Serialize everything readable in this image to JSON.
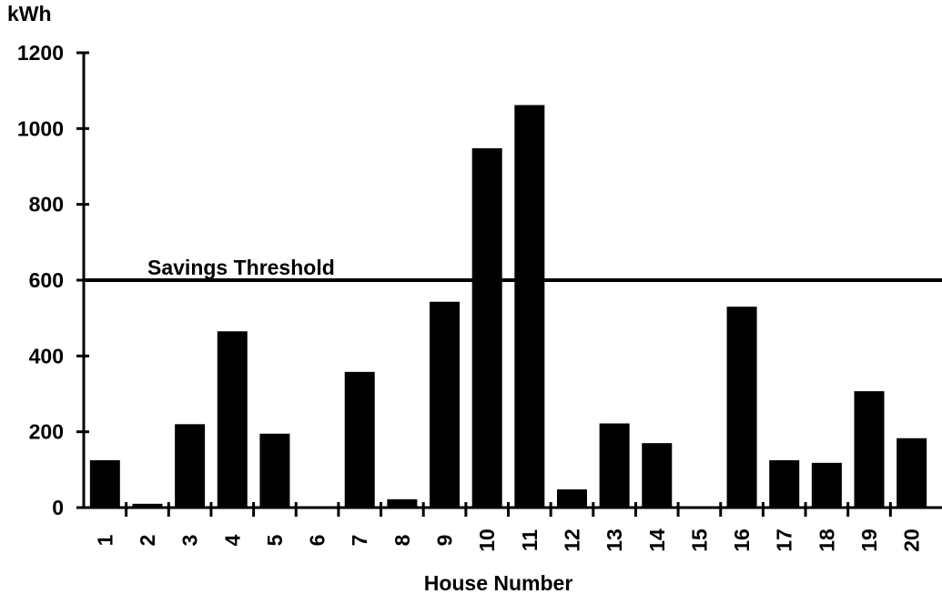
{
  "chart_data": {
    "type": "bar",
    "title": "",
    "ylabel": "kWh",
    "xlabel": "House Number",
    "ylim": [
      0,
      1200
    ],
    "yticks": [
      0,
      200,
      400,
      600,
      800,
      1000,
      1200
    ],
    "categories": [
      "1",
      "2",
      "3",
      "4",
      "5",
      "6",
      "7",
      "8",
      "9",
      "10",
      "11",
      "12",
      "13",
      "14",
      "15",
      "16",
      "17",
      "18",
      "19",
      "20"
    ],
    "values": [
      125,
      10,
      220,
      465,
      195,
      2,
      358,
      22,
      543,
      948,
      1062,
      48,
      222,
      170,
      3,
      530,
      125,
      118,
      307,
      183
    ],
    "reference_line": {
      "label": "Savings Threshold",
      "value": 600
    },
    "grid": false,
    "bar_color": "#000000"
  }
}
